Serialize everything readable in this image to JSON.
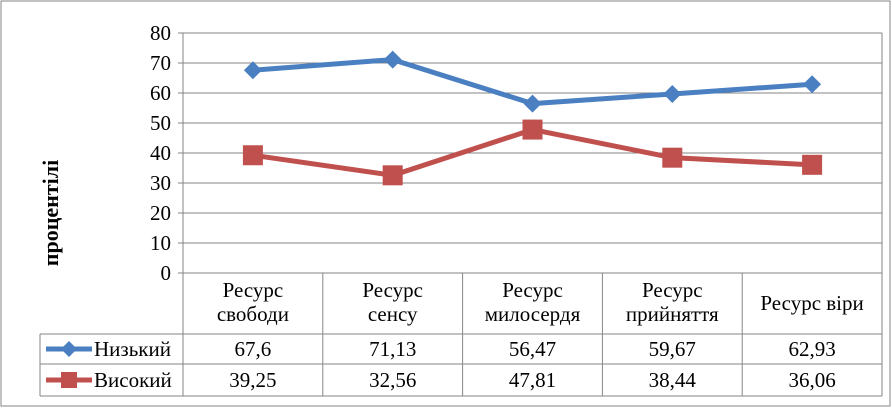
{
  "chart_data": {
    "type": "line",
    "ylabel": "процентілі",
    "ylim": [
      0,
      80
    ],
    "ytick_step": 10,
    "grid": true,
    "legend": "data-table-left",
    "categories": [
      [
        "Ресурс",
        "свободи"
      ],
      [
        "Ресурс",
        "сенсу"
      ],
      [
        "Ресурс",
        "милосердя"
      ],
      [
        "Ресурс",
        "прийняття"
      ],
      [
        "Ресурс віри"
      ]
    ],
    "series": [
      {
        "name": "Низький",
        "values": [
          67.6,
          71.13,
          56.47,
          59.67,
          62.93
        ],
        "labels": [
          "67,6",
          "71,13",
          "56,47",
          "59,67",
          "62,93"
        ],
        "color": "#4a7fc1",
        "marker": "diamond"
      },
      {
        "name": "Високий",
        "values": [
          39.25,
          32.56,
          47.81,
          38.44,
          36.06
        ],
        "labels": [
          "39,25",
          "32,56",
          "47,81",
          "38,44",
          "36,06"
        ],
        "color": "#c0504d",
        "marker": "square"
      }
    ]
  }
}
